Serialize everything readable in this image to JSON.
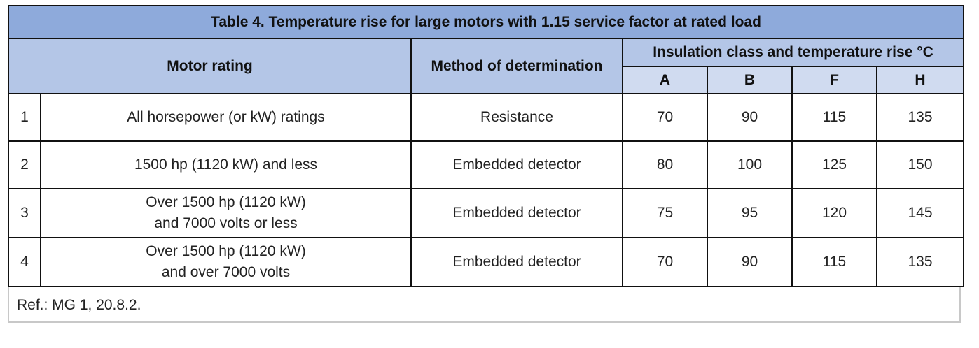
{
  "title": "Table 4. Temperature rise for large motors with 1.15 service factor at rated load",
  "headers": {
    "motor_rating": "Motor rating",
    "method": "Method of determination",
    "insulation_group": "Insulation class and temperature rise °C",
    "classes": [
      "A",
      "B",
      "F",
      "H"
    ]
  },
  "rows": [
    {
      "index": "1",
      "rating_lines": [
        "All horsepower (or kW) ratings"
      ],
      "method": "Resistance",
      "values": [
        "70",
        "90",
        "115",
        "135"
      ]
    },
    {
      "index": "2",
      "rating_lines": [
        "1500 hp (1120 kW) and less"
      ],
      "method": "Embedded detector",
      "values": [
        "80",
        "100",
        "125",
        "150"
      ]
    },
    {
      "index": "3",
      "rating_lines": [
        "Over 1500 hp (1120 kW)",
        "and 7000 volts or less"
      ],
      "method": "Embedded detector",
      "values": [
        "75",
        "95",
        "120",
        "145"
      ]
    },
    {
      "index": "4",
      "rating_lines": [
        "Over 1500 hp (1120 kW)",
        "and over 7000 volts"
      ],
      "method": "Embedded detector",
      "values": [
        "70",
        "90",
        "115",
        "135"
      ]
    }
  ],
  "footnote": "Ref.: MG 1, 20.8.2."
}
